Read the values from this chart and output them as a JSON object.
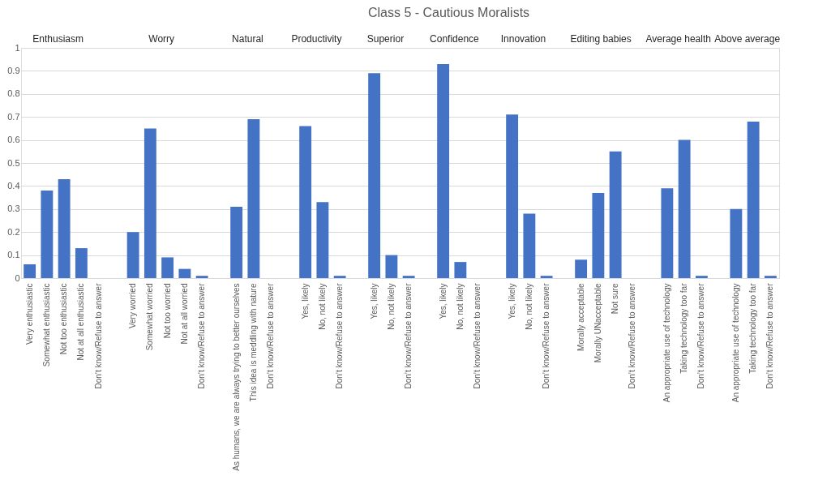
{
  "chart_data": {
    "type": "bar",
    "title": "Class 5 - Cautious Moralists",
    "categories": [
      "Very enthusiastic",
      "Somewhat enthusiastic",
      "Not too enthusiastic",
      "Not at all enthusiastic",
      "Don’t know/Refuse to answer",
      null,
      "Very worried",
      "Somewhat worried",
      "Not too worried",
      "Not at all worried",
      "Don’t know/Refuse to answer",
      null,
      "As humans, we are always trying to better ourselves",
      "This idea is meddling with nature",
      "Don’t know/Refuse to answer",
      null,
      "Yes, likely",
      "No, not likely",
      "Don’t know/Refuse to answer",
      null,
      "Yes, likely",
      "No, not likely",
      "Don’t know/Refuse to answer",
      null,
      "Yes, likely",
      "No, not likely",
      "Don’t know/Refuse to answer",
      null,
      "Yes, likely",
      "No, not likely",
      "Don’t know/Refuse to answer",
      null,
      "Morally acceptable",
      "Morally UNacceptable",
      "Not sure",
      "Don’t know/Refuse to answer",
      null,
      "An appropriate use of technology",
      "Taking technology too far",
      "Don’t know/Refuse to answer",
      null,
      "An appropriate use of technology",
      "Taking technology too far",
      "Don’t know/Refuse to answer"
    ],
    "values": [
      0.06,
      0.38,
      0.43,
      0.13,
      0,
      null,
      0.2,
      0.65,
      0.09,
      0.04,
      0.01,
      null,
      0.31,
      0.69,
      0,
      null,
      0.66,
      0.33,
      0.01,
      null,
      0.89,
      0.1,
      0.01,
      null,
      0.93,
      0.07,
      0,
      null,
      0.71,
      0.28,
      0.01,
      null,
      0.08,
      0.37,
      0.55,
      0,
      null,
      0.39,
      0.6,
      0.01,
      null,
      0.3,
      0.68,
      0.01
    ],
    "color": "#4472c4",
    "ylim": [
      0,
      1
    ],
    "yticks": [
      0,
      0.1,
      0.2,
      0.3,
      0.4,
      0.5,
      0.6,
      0.7,
      0.8,
      0.9,
      1
    ],
    "grid": "y",
    "annotations": [
      "Enthusiasm",
      "Worry",
      "Natural",
      "Productivity",
      "Superior",
      "Confidence",
      "Innovation",
      "Editing babies",
      "Average health",
      "Above average"
    ]
  }
}
